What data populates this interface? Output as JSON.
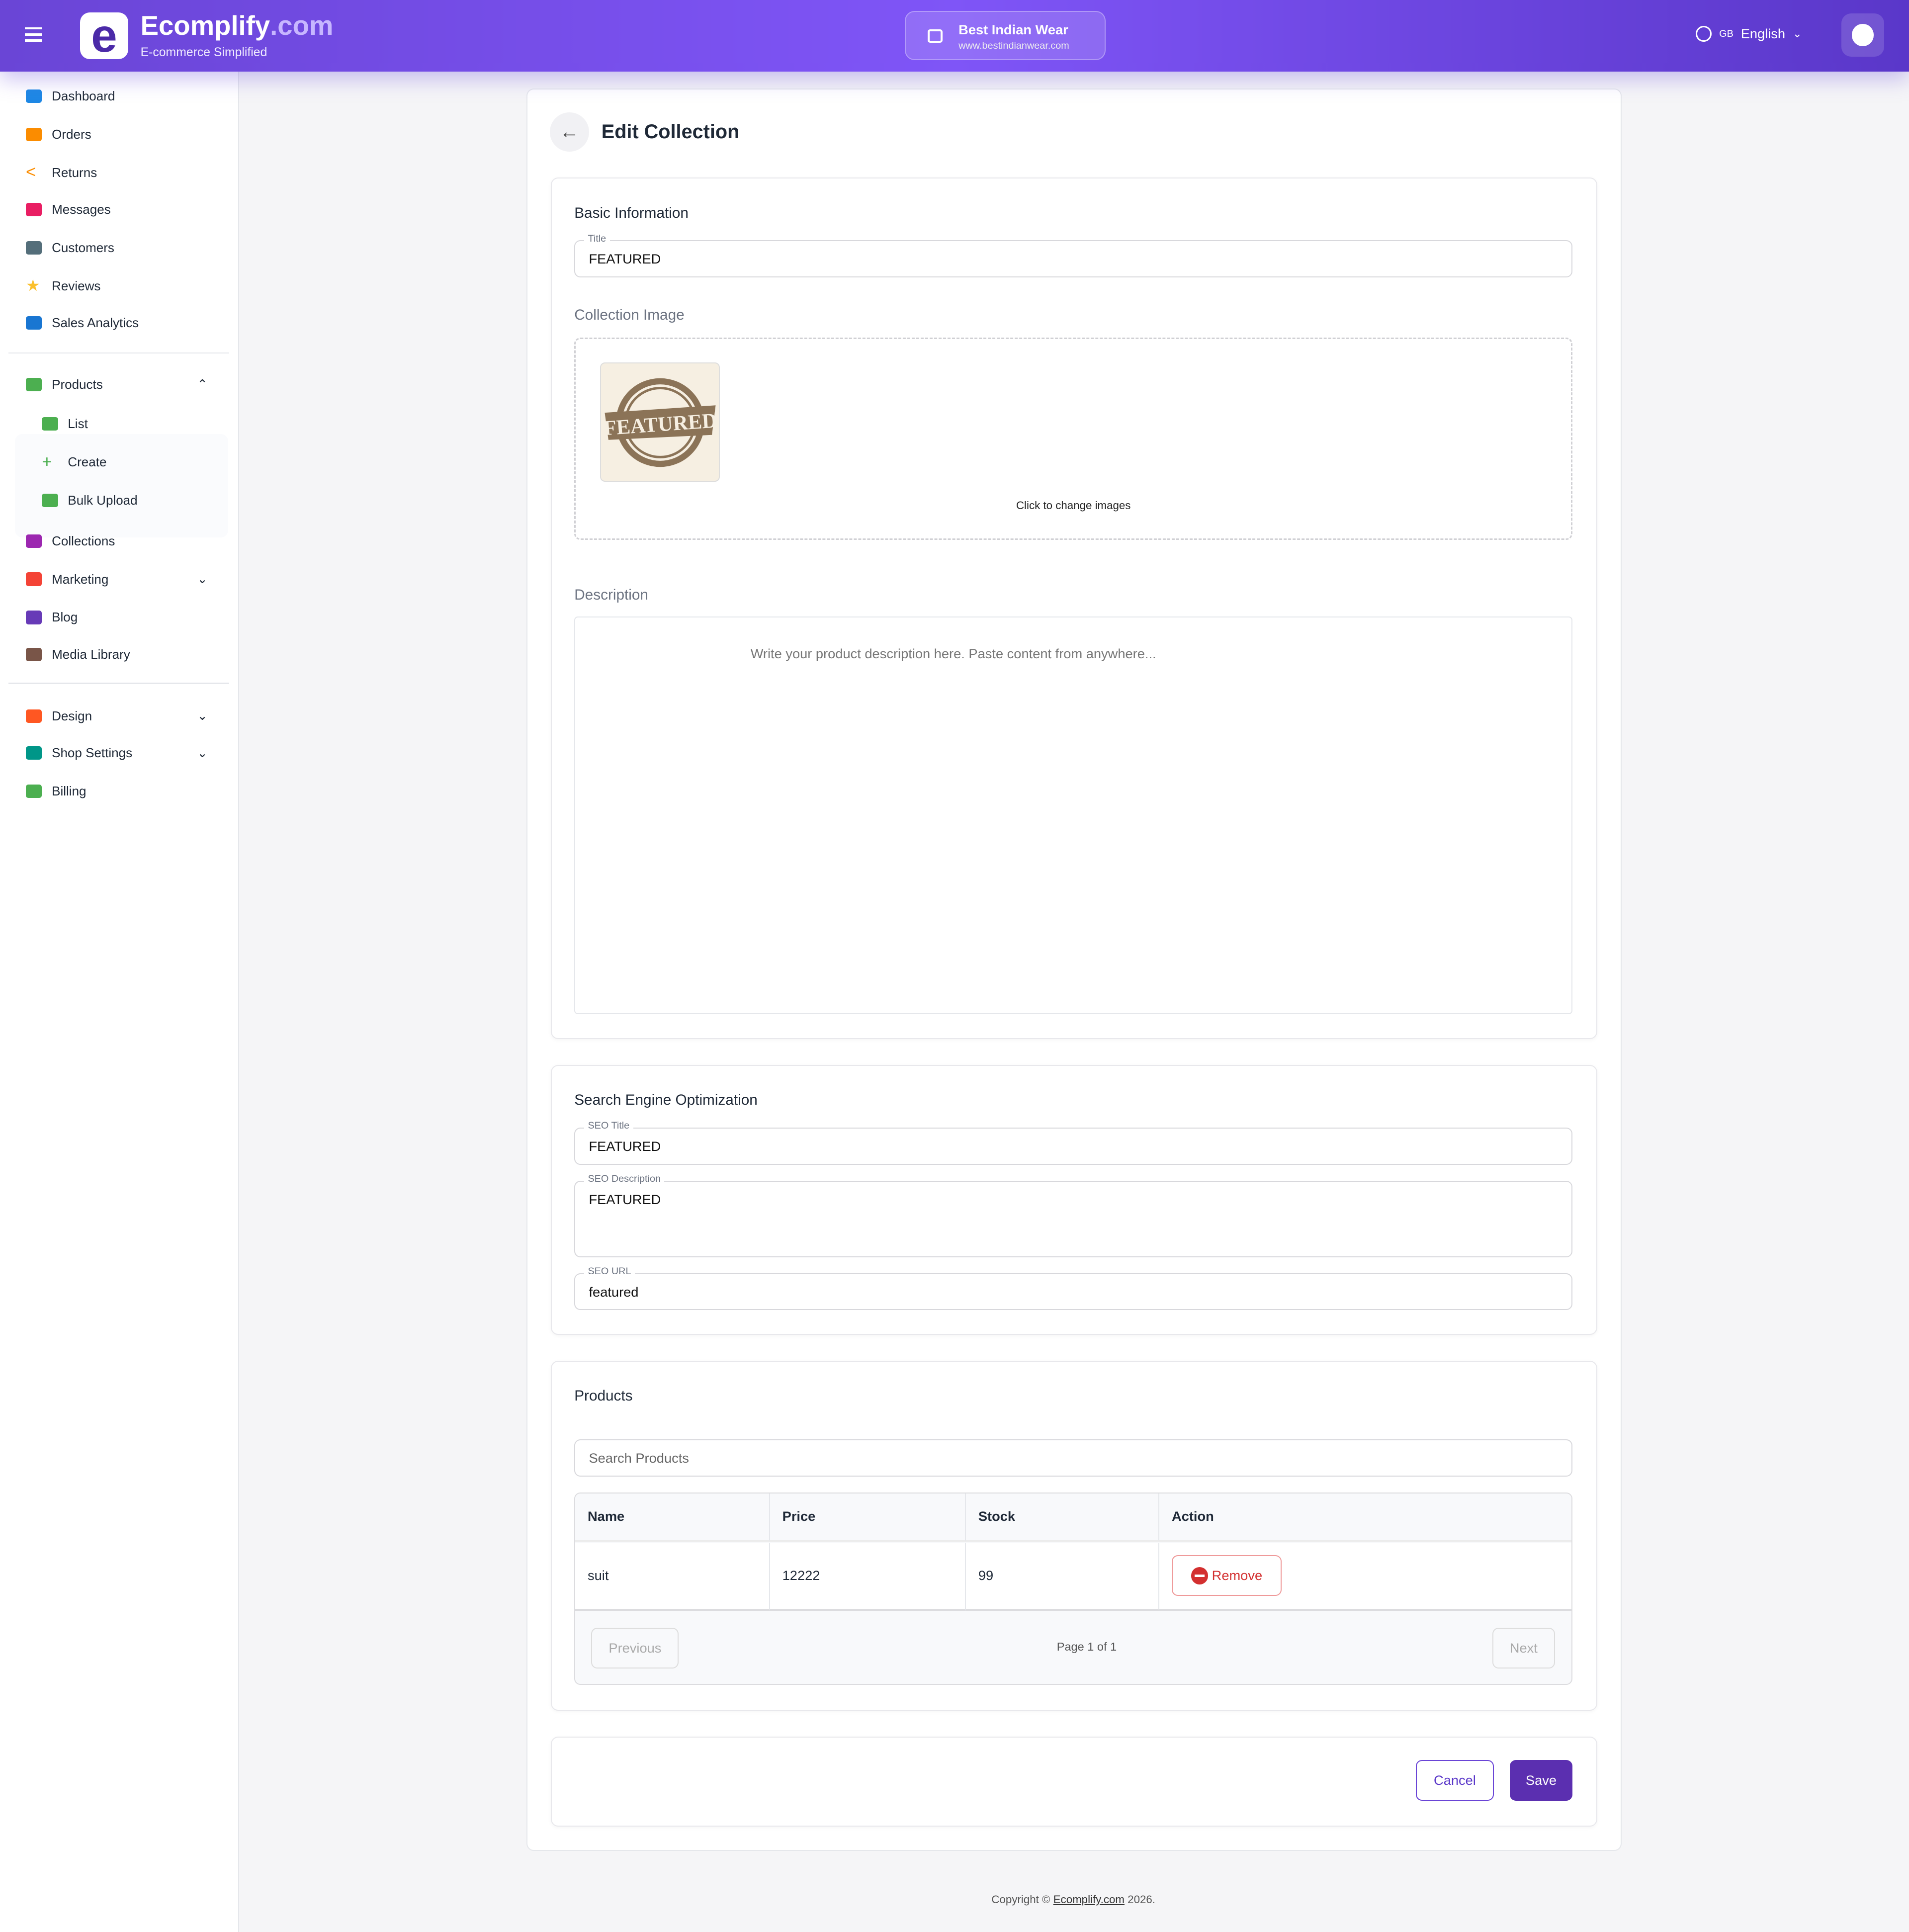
{
  "header": {
    "brand": "Ecomplify",
    "brand_suffix": ".com",
    "tagline": "E-commerce Simplified",
    "logo_letter": "e",
    "store_name": "Best Indian Wear",
    "store_url": "www.bestindianwear.com",
    "language_flag": "GB",
    "language": "English",
    "accent": "#7f55f7"
  },
  "sidebar": {
    "items": [
      {
        "label": "Dashboard",
        "icon": "dashboard-icon",
        "color": "#1e88e5"
      },
      {
        "label": "Orders",
        "icon": "cart-icon",
        "color": "#fb8c00"
      },
      {
        "label": "Returns",
        "icon": "chevron-left-icon",
        "color": "#fb8c00"
      },
      {
        "label": "Messages",
        "icon": "message-icon",
        "color": "#e91e63"
      },
      {
        "label": "Customers",
        "icon": "people-icon",
        "color": "#546e7a"
      },
      {
        "label": "Reviews",
        "icon": "star-icon",
        "color": "#fbc02d"
      },
      {
        "label": "Sales Analytics",
        "icon": "analytics-icon",
        "color": "#1976d2"
      },
      {
        "label": "Products",
        "icon": "archive-icon",
        "color": "#4caf50"
      },
      {
        "label": "List",
        "icon": "archive-icon",
        "color": "#4caf50"
      },
      {
        "label": "Create",
        "icon": "plus-icon",
        "color": "#4caf50"
      },
      {
        "label": "Bulk Upload",
        "icon": "cloud-upload-icon",
        "color": "#4caf50"
      },
      {
        "label": "Collections",
        "icon": "collections-icon",
        "color": "#9c27b0"
      },
      {
        "label": "Marketing",
        "icon": "megaphone-icon",
        "color": "#f44336"
      },
      {
        "label": "Blog",
        "icon": "blog-icon",
        "color": "#673ab7"
      },
      {
        "label": "Media Library",
        "icon": "media-icon",
        "color": "#795548"
      },
      {
        "label": "Design",
        "icon": "palette-icon",
        "color": "#ff5722"
      },
      {
        "label": "Shop Settings",
        "icon": "store-icon",
        "color": "#009688"
      },
      {
        "label": "Billing",
        "icon": "credit-card-icon",
        "color": "#4caf50"
      }
    ]
  },
  "page": {
    "title": "Edit Collection"
  },
  "basic": {
    "heading": "Basic Information",
    "title_label": "Title",
    "title_value": "FEATURED",
    "image_heading": "Collection Image",
    "image_text": "FEATURED",
    "change_images": "Click to change images",
    "description_heading": "Description",
    "description_placeholder": "Write your product description here. Paste content from anywhere..."
  },
  "seo": {
    "heading": "Search Engine Optimization",
    "title_label": "SEO Title",
    "title_value": "FEATURED",
    "desc_label": "SEO Description",
    "desc_value": "FEATURED",
    "url_label": "SEO URL",
    "url_value": "featured"
  },
  "products": {
    "heading": "Products",
    "search_placeholder": "Search Products",
    "columns": [
      "Name",
      "Price",
      "Stock",
      "Action"
    ],
    "rows": [
      {
        "name": "suit",
        "price": "12222",
        "stock": "99",
        "action": "Remove"
      }
    ],
    "previous": "Previous",
    "page_info": "Page 1 of 1",
    "next": "Next"
  },
  "actions": {
    "cancel": "Cancel",
    "save": "Save"
  },
  "footer": {
    "prefix": "Copyright © ",
    "link": "Ecomplify.com",
    "suffix": " 2026."
  }
}
